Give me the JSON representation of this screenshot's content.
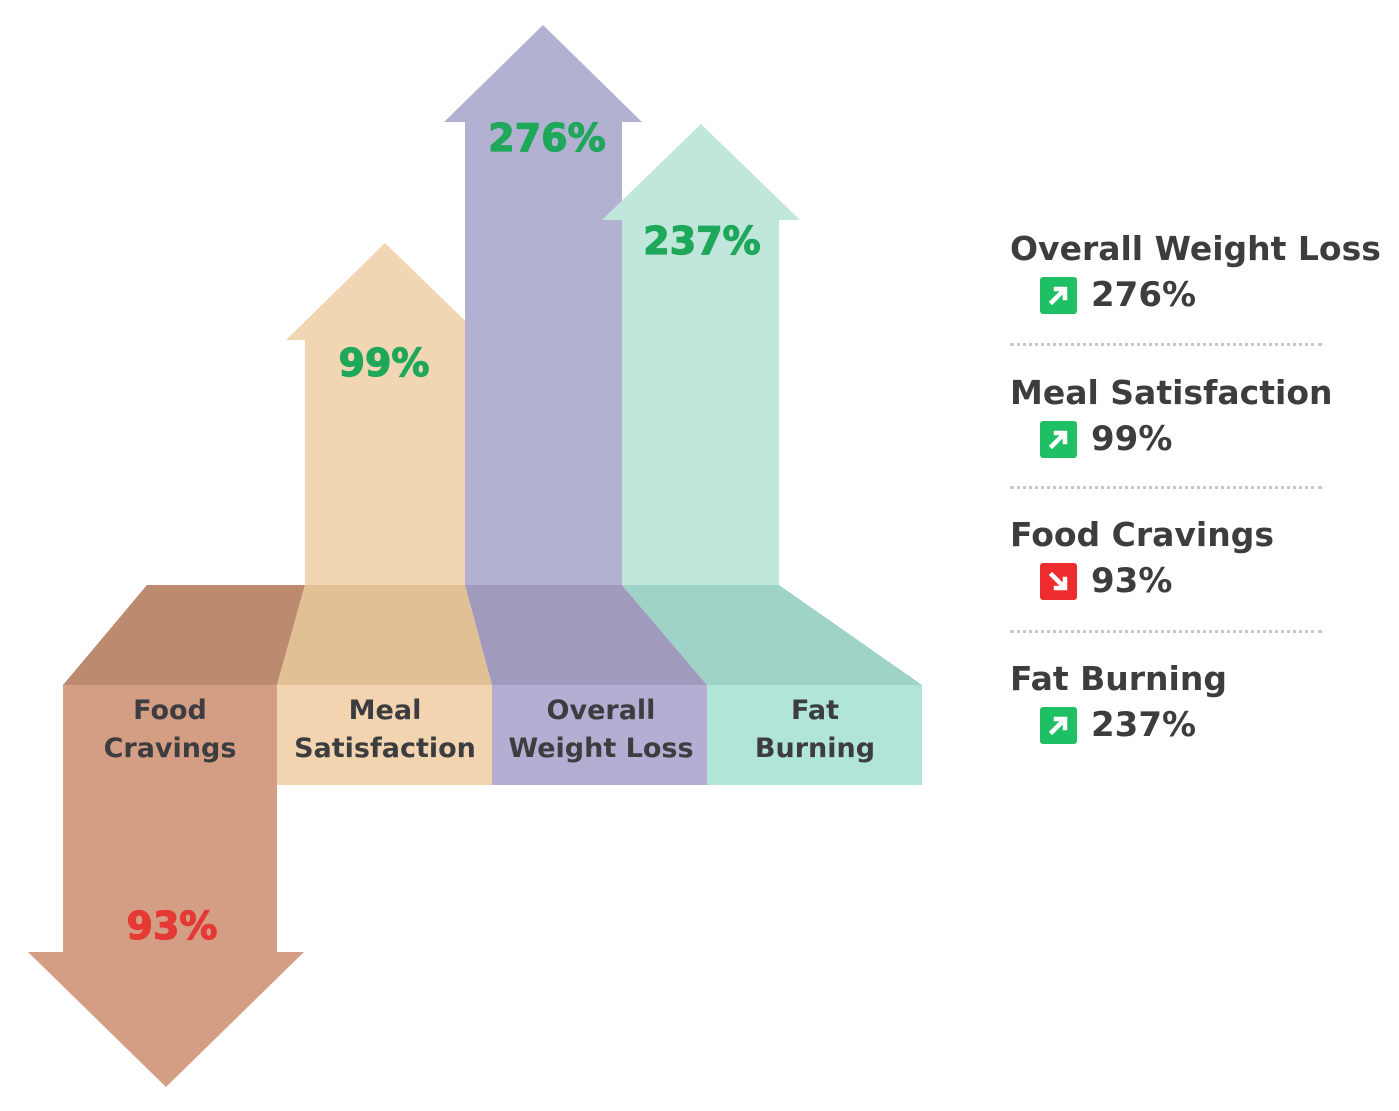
{
  "chart_data": {
    "type": "arrow-infographic",
    "categories": [
      "Food Cravings",
      "Meal Satisfaction",
      "Overall Weight Loss",
      "Fat Burning"
    ],
    "category_labels": [
      [
        "Food",
        "Cravings"
      ],
      [
        "Meal",
        "Satisfaction"
      ],
      [
        "Overall",
        "Weight Loss"
      ],
      [
        "Fat",
        "Burning"
      ]
    ],
    "values": [
      93,
      99,
      276,
      237
    ],
    "value_labels": [
      "93%",
      "99%",
      "276%",
      "237%"
    ],
    "directions": [
      "down",
      "up",
      "up",
      "up"
    ],
    "colors": [
      "#d39e84",
      "#f1d6b3",
      "#b3b1d1",
      "#c1e6dc"
    ],
    "up_color": "#1fa75a",
    "down_color": "#e53935"
  },
  "legend": [
    {
      "title": "Overall Weight Loss",
      "value": "276%",
      "icon": "arrow-up-right-icon",
      "color": "#1fbf64"
    },
    {
      "title": "Meal Satisfaction",
      "value": "99%",
      "icon": "arrow-up-right-icon",
      "color": "#1fbf64"
    },
    {
      "title": "Food Cravings",
      "value": "93%",
      "icon": "arrow-down-right-icon",
      "color": "#ee2b2f"
    },
    {
      "title": "Fat Burning",
      "value": "237%",
      "icon": "arrow-up-right-icon",
      "color": "#1fbf64"
    }
  ]
}
